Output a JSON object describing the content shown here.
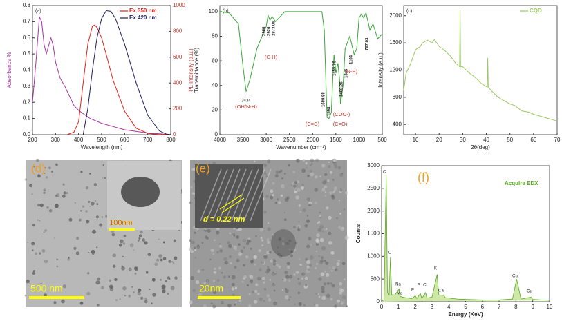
{
  "chart_data": [
    {
      "type": "line",
      "title": "(a)",
      "xlabel": "Wavelength (nm)",
      "ylabel": "Absorbance %",
      "y2label": "PL Intensity (a.u.)",
      "xlim": [
        200,
        800
      ],
      "xticks": [
        200,
        300,
        400,
        500,
        600,
        700,
        800
      ],
      "ylim": [
        0,
        0.8
      ],
      "yticks": [
        {
          "value": 0,
          "label": "0.0"
        },
        0.1,
        0.2,
        0.3,
        0.4,
        0.5,
        0.6,
        0.7,
        0.8
      ],
      "y2lim": [
        0,
        1000
      ],
      "y2ticks": [
        0,
        200,
        400,
        600,
        800,
        1000
      ],
      "legend": "upper right",
      "series": [
        {
          "color": "#a0389e",
          "x": [
            200,
            215,
            230,
            240,
            250,
            260,
            270,
            280,
            290,
            300,
            320,
            340,
            360,
            380,
            400,
            420,
            450,
            500,
            550,
            600,
            650,
            700,
            750,
            800
          ],
          "values": [
            0.2,
            0.45,
            0.73,
            0.7,
            0.56,
            0.5,
            0.55,
            0.6,
            0.55,
            0.45,
            0.35,
            0.3,
            0.24,
            0.18,
            0.15,
            0.13,
            0.1,
            0.07,
            0.05,
            0.03,
            0.02,
            0.01,
            0.005,
            0
          ]
        },
        {
          "name": "Ex 350 nm",
          "color": "#e0201b",
          "axis": "y2",
          "x": [
            350,
            380,
            400,
            420,
            440,
            460,
            470,
            480,
            500,
            520,
            550,
            600,
            650,
            700,
            750,
            800
          ],
          "values": [
            0,
            20,
            100,
            400,
            700,
            840,
            850,
            830,
            750,
            620,
            420,
            180,
            50,
            10,
            0,
            0
          ]
        },
        {
          "name": "Ex 420 nm",
          "color": "#1c1c5c",
          "axis": "y2",
          "x": [
            420,
            440,
            460,
            480,
            500,
            520,
            540,
            560,
            600,
            650,
            700,
            750,
            780,
            800
          ],
          "values": [
            0,
            200,
            500,
            750,
            900,
            960,
            955,
            900,
            700,
            400,
            150,
            30,
            5,
            0
          ]
        }
      ]
    },
    {
      "type": "line",
      "title": "(b)",
      "xlabel": "Wavenumber (cm⁻¹)",
      "ylabel": "Transmittance (%)",
      "xlim": [
        4000,
        500
      ],
      "xticks": [
        4000,
        3500,
        3000,
        2500,
        2000,
        1500,
        1000,
        500
      ],
      "ylim": [
        0,
        105
      ],
      "yticks": [
        0,
        20,
        40,
        60,
        80,
        100
      ],
      "series": [
        {
          "color": "#3aa63a",
          "x": [
            4000,
            3800,
            3600,
            3500,
            3434,
            3350,
            3200,
            3000,
            2960,
            2920,
            2873,
            2800,
            2600,
            2000,
            1800,
            1750,
            1690,
            1650,
            1598,
            1560,
            1540,
            1500,
            1455,
            1420,
            1400,
            1345,
            1300,
            1200,
            1104,
            1050,
            1000,
            950,
            900,
            850,
            767,
            700,
            600,
            500
          ],
          "values": [
            100,
            99,
            90,
            55,
            35,
            45,
            70,
            88,
            97,
            93,
            96,
            92,
            100,
            100,
            100,
            85,
            14,
            13,
            18,
            50,
            65,
            50,
            58,
            45,
            25,
            40,
            70,
            80,
            65,
            70,
            95,
            98,
            95,
            99,
            85,
            90,
            78,
            82
          ]
        }
      ],
      "annotations": [
        "3434",
        "(OH/N-H)",
        "2960",
        "2926",
        "2873.06",
        "(C-H)",
        "1689.88",
        "1598",
        "(C=C)",
        "(C=O)",
        "1455.76",
        "1400.26",
        "(COO-)",
        "1345",
        "1104",
        "(N-H)",
        "767.03"
      ]
    },
    {
      "type": "line",
      "title": "(c)",
      "xlabel": "2θ(deg)",
      "ylabel": "Intensity (a.u.)",
      "xlim": [
        5,
        70
      ],
      "xticks": [
        10,
        20,
        30,
        40,
        50,
        60,
        70
      ],
      "ylim": [
        250,
        2150
      ],
      "yticks": [
        400,
        800,
        1200,
        1600,
        2000
      ],
      "legend": "upper right",
      "series": [
        {
          "name": "CQD",
          "color": "#9cc860",
          "x": [
            5,
            6,
            8,
            10,
            12,
            13,
            15,
            17,
            18,
            20,
            22,
            25,
            27,
            28.7,
            28.9,
            29.1,
            30,
            33,
            35,
            38,
            40.4,
            40.6,
            40.8,
            42,
            45,
            47,
            50,
            52,
            55,
            58,
            60,
            63,
            65,
            68,
            70
          ],
          "values": [
            900,
            1150,
            1300,
            1500,
            1550,
            1600,
            1640,
            1600,
            1650,
            1550,
            1500,
            1400,
            1300,
            1250,
            2080,
            1250,
            1250,
            1150,
            1100,
            1000,
            950,
            1380,
            950,
            900,
            800,
            760,
            700,
            680,
            600,
            580,
            550,
            520,
            500,
            470,
            450
          ]
        }
      ]
    },
    {
      "type": "area",
      "title": "(f)",
      "xlabel": "Energy (KeV)",
      "ylabel": "Counts",
      "xlim": [
        0,
        10
      ],
      "xticks": [
        0,
        1,
        2,
        3,
        4,
        5,
        6,
        7,
        8,
        9,
        10
      ],
      "ylim": [
        0,
        3000
      ],
      "yticks": [
        0,
        500,
        1000,
        1500,
        2000,
        2500,
        3000
      ],
      "legend": "upper right",
      "series": [
        {
          "name": "Acquire EDX",
          "color": "#56a81c",
          "fill": "#cfe8a8",
          "x": [
            0,
            0.15,
            0.277,
            0.35,
            0.45,
            0.525,
            0.6,
            0.8,
            1.04,
            1.1,
            1.25,
            1.4,
            1.6,
            1.8,
            2.01,
            2.1,
            2.31,
            2.4,
            2.62,
            2.7,
            3.0,
            3.31,
            3.4,
            3.69,
            3.8,
            4.5,
            5,
            6,
            7,
            7.8,
            8.04,
            8.3,
            8.9,
            9,
            10
          ],
          "values": [
            0,
            50,
            2800,
            200,
            150,
            980,
            150,
            150,
            280,
            120,
            100,
            90,
            80,
            70,
            130,
            70,
            180,
            70,
            200,
            80,
            100,
            600,
            150,
            140,
            90,
            60,
            50,
            40,
            40,
            60,
            500,
            60,
            100,
            50,
            30
          ]
        }
      ],
      "annotations": [
        "C",
        "O",
        "Na",
        "Mg",
        "P",
        "S",
        "Cl",
        "K",
        "Ca",
        "Cu",
        "Cu"
      ]
    }
  ],
  "images": [
    {
      "label": "(d)",
      "inset_scale": "100nm",
      "scale": "500 nm"
    },
    {
      "label": "(e)",
      "annotation": "d = 0.22 nm",
      "scale": "20nm"
    }
  ]
}
